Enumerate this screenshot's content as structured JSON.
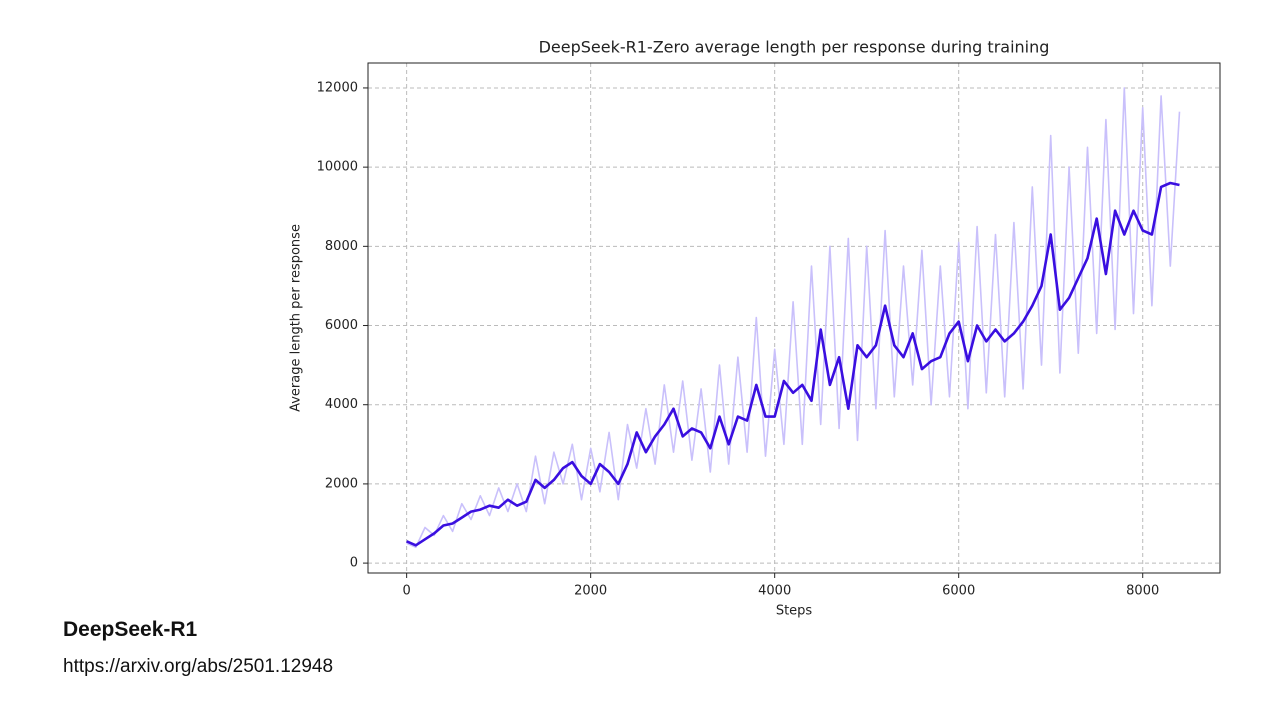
{
  "chart_data": {
    "type": "line",
    "title": "DeepSeek-R1-Zero average length per response during training",
    "xlabel": "Steps",
    "ylabel": "Average length per response",
    "x": [
      0,
      100,
      200,
      300,
      400,
      500,
      600,
      700,
      800,
      900,
      1000,
      1100,
      1200,
      1300,
      1400,
      1500,
      1600,
      1700,
      1800,
      1900,
      2000,
      2100,
      2200,
      2300,
      2400,
      2500,
      2600,
      2700,
      2800,
      2900,
      3000,
      3100,
      3200,
      3300,
      3400,
      3500,
      3600,
      3700,
      3800,
      3900,
      4000,
      4100,
      4200,
      4300,
      4400,
      4500,
      4600,
      4700,
      4800,
      4900,
      5000,
      5100,
      5200,
      5300,
      5400,
      5500,
      5600,
      5700,
      5800,
      5900,
      6000,
      6100,
      6200,
      6300,
      6400,
      6500,
      6600,
      6700,
      6800,
      6900,
      7000,
      7100,
      7200,
      7300,
      7400,
      7500,
      7600,
      7700,
      7800,
      7900,
      8000,
      8100,
      8200,
      8300,
      8400
    ],
    "series": [
      {
        "color": "#c9c0fb",
        "width": 1.6,
        "values": [
          500,
          400,
          900,
          700,
          1200,
          800,
          1500,
          1100,
          1700,
          1200,
          1900,
          1300,
          2000,
          1300,
          2700,
          1500,
          2800,
          2000,
          3000,
          1600,
          2900,
          1800,
          3300,
          1600,
          3500,
          2400,
          3900,
          2500,
          4500,
          2800,
          4600,
          2600,
          4400,
          2300,
          5000,
          2500,
          5200,
          2800,
          6200,
          2700,
          5400,
          3000,
          6600,
          3000,
          7500,
          3500,
          8000,
          3400,
          8200,
          3100,
          8000,
          3900,
          8400,
          4200,
          7500,
          4500,
          7900,
          4000,
          7500,
          4200,
          8100,
          3900,
          8500,
          4300,
          8300,
          4200,
          8600,
          4400,
          9500,
          5000,
          10800,
          4800,
          10000,
          5300,
          10500,
          5800,
          11200,
          5900,
          12000,
          6300,
          11500,
          6500,
          11800,
          7500,
          11400
        ]
      },
      {
        "color": "#3a0fe0",
        "width": 2.6,
        "values": [
          550,
          450,
          600,
          750,
          950,
          1000,
          1150,
          1300,
          1350,
          1450,
          1400,
          1600,
          1450,
          1550,
          2100,
          1900,
          2100,
          2400,
          2550,
          2200,
          2000,
          2500,
          2300,
          2000,
          2500,
          3300,
          2800,
          3200,
          3500,
          3900,
          3200,
          3400,
          3300,
          2900,
          3700,
          3000,
          3700,
          3600,
          4500,
          3700,
          3700,
          4600,
          4300,
          4500,
          4100,
          5900,
          4500,
          5200,
          3900,
          5500,
          5200,
          5500,
          6500,
          5500,
          5200,
          5800,
          4900,
          5100,
          5200,
          5800,
          6100,
          5100,
          6000,
          5600,
          5900,
          5600,
          5800,
          6100,
          6500,
          7000,
          8300,
          6400,
          6700,
          7200,
          7700,
          8700,
          7300,
          8900,
          8300,
          8900,
          8400,
          8300,
          9500,
          9600,
          9550
        ]
      }
    ],
    "xlim": [
      -420,
      8840
    ],
    "ylim": [
      -250,
      12630
    ],
    "xticks": [
      0,
      2000,
      4000,
      6000,
      8000
    ],
    "yticks": [
      0,
      2000,
      4000,
      6000,
      8000,
      10000,
      12000
    ],
    "grid": true
  },
  "caption": {
    "title": "DeepSeek-R1",
    "url": "https://arxiv.org/abs/2501.12948"
  }
}
